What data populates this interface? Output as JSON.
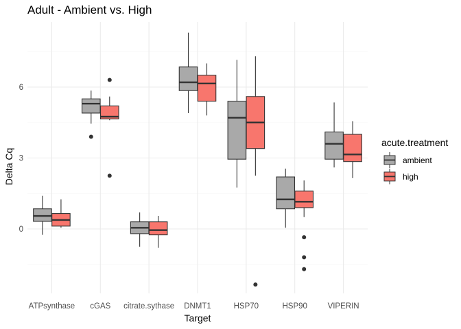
{
  "chart_data": {
    "type": "boxplot",
    "title": "Adult - Ambient vs. High",
    "xlabel": "Target",
    "ylabel": "Delta Cq",
    "ylim": [
      -2.35,
      8.4
    ],
    "y_ticks": [
      0,
      3,
      6
    ],
    "grid": true,
    "categories": [
      "ATPsynthase",
      "cGAS",
      "citrate.sythase",
      "DNMT1",
      "HSP70",
      "HSP90",
      "VIPERIN"
    ],
    "legend": {
      "title": "acute.treatment",
      "placement": "right"
    },
    "series": [
      {
        "name": "ambient",
        "color": "#a9a9a9",
        "boxes": [
          {
            "whisker_low": -0.25,
            "q1": 0.32,
            "median": 0.55,
            "q3": 0.85,
            "whisker_high": 1.4,
            "outliers": []
          },
          {
            "whisker_low": 4.45,
            "q1": 4.9,
            "median": 5.3,
            "q3": 5.5,
            "whisker_high": 5.85,
            "outliers": [
              3.9
            ]
          },
          {
            "whisker_low": -0.75,
            "q1": -0.2,
            "median": 0.05,
            "q3": 0.3,
            "whisker_high": 0.7,
            "outliers": []
          },
          {
            "whisker_low": 4.9,
            "q1": 5.85,
            "median": 6.2,
            "q3": 6.85,
            "whisker_high": 8.3,
            "outliers": []
          },
          {
            "whisker_low": 1.75,
            "q1": 2.95,
            "median": 4.7,
            "q3": 5.4,
            "whisker_high": 7.15,
            "outliers": []
          },
          {
            "whisker_low": 0.05,
            "q1": 0.85,
            "median": 1.25,
            "q3": 2.2,
            "whisker_high": 2.55,
            "outliers": []
          },
          {
            "whisker_low": 2.6,
            "q1": 2.95,
            "median": 3.6,
            "q3": 4.1,
            "whisker_high": 5.35,
            "outliers": []
          }
        ]
      },
      {
        "name": "high",
        "color": "#f8766d",
        "boxes": [
          {
            "whisker_low": 0.05,
            "q1": 0.12,
            "median": 0.38,
            "q3": 0.65,
            "whisker_high": 1.25,
            "outliers": []
          },
          {
            "whisker_low": 4.6,
            "q1": 4.65,
            "median": 4.75,
            "q3": 5.2,
            "whisker_high": 5.6,
            "outliers": [
              6.3,
              2.25
            ]
          },
          {
            "whisker_low": -0.8,
            "q1": -0.25,
            "median": -0.05,
            "q3": 0.3,
            "whisker_high": 0.55,
            "outliers": []
          },
          {
            "whisker_low": 4.8,
            "q1": 5.4,
            "median": 6.15,
            "q3": 6.5,
            "whisker_high": 7.0,
            "outliers": []
          },
          {
            "whisker_low": 2.25,
            "q1": 3.4,
            "median": 4.5,
            "q3": 5.6,
            "whisker_high": 7.3,
            "outliers": [
              -2.35
            ]
          },
          {
            "whisker_low": 0.5,
            "q1": 0.9,
            "median": 1.15,
            "q3": 1.6,
            "whisker_high": 2.05,
            "outliers": [
              -0.35,
              -1.2,
              -1.7
            ]
          },
          {
            "whisker_low": 2.15,
            "q1": 2.85,
            "median": 3.15,
            "q3": 4.0,
            "whisker_high": 4.55,
            "outliers": []
          }
        ]
      }
    ]
  }
}
